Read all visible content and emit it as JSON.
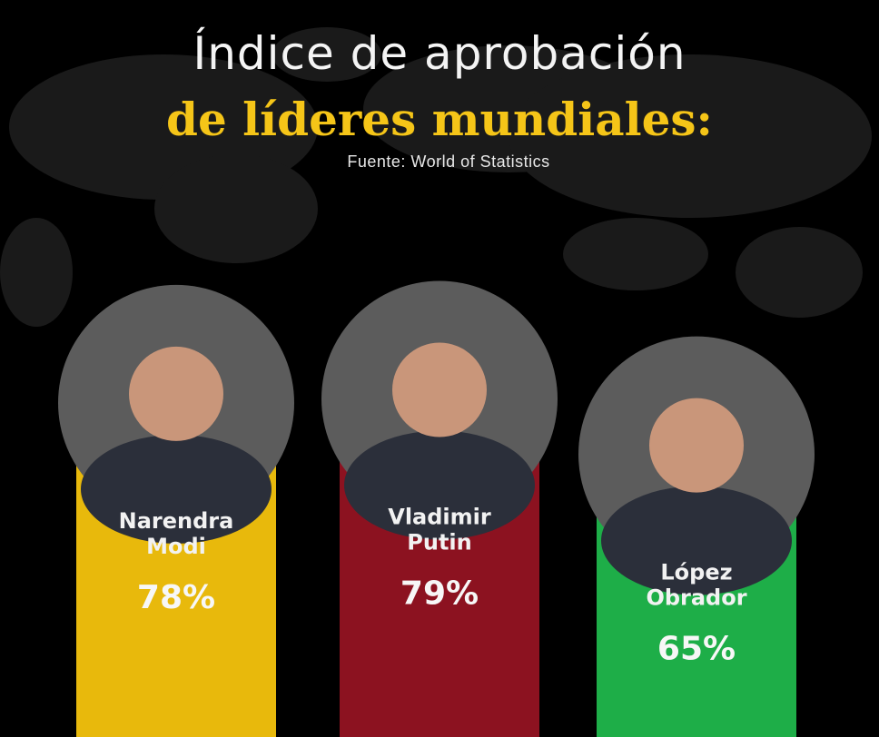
{
  "title_line1": "Índice de aprobación",
  "title_line2": "de líderes mundiales:",
  "source": "Fuente: World of Statistics",
  "colors": {
    "background": "#000000",
    "title_accent": "#f5c518",
    "modi": "#e8b90c",
    "putin": "#8c1220",
    "obrador": "#1eae48"
  },
  "chart_data": {
    "type": "bar",
    "title": "Índice de aprobación de líderes mundiales:",
    "categories": [
      "Narendra Modi",
      "Vladimir Putin",
      "López Obrador"
    ],
    "name_lines": [
      [
        "Narendra",
        "Modi"
      ],
      [
        "Vladimir",
        "Putin"
      ],
      [
        "López",
        "Obrador"
      ]
    ],
    "values": [
      78,
      79,
      65
    ],
    "value_labels": [
      "78%",
      "79%",
      "65%"
    ],
    "bar_colors": [
      "#e8b90c",
      "#8c1220",
      "#1eae48"
    ],
    "ylim": [
      0,
      100
    ],
    "xlabel": "",
    "ylabel": "",
    "grid": false
  }
}
